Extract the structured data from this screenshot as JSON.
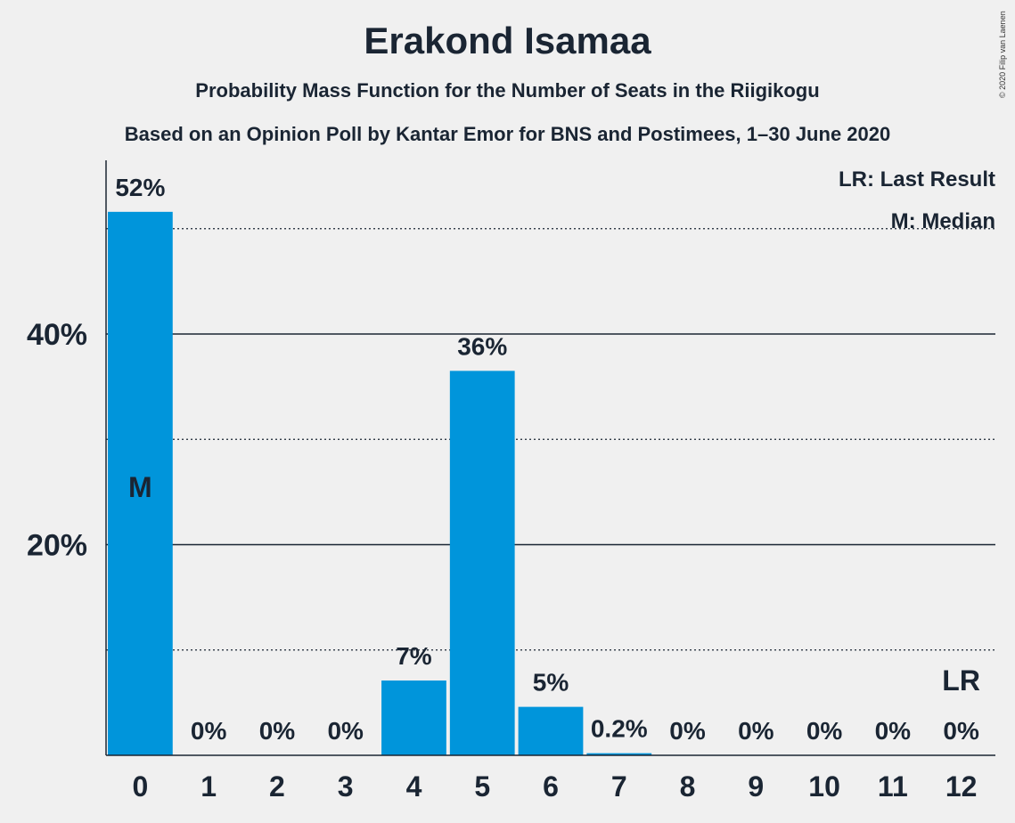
{
  "title": "Erakond Isamaa",
  "subtitle": "Probability Mass Function for the Number of Seats in the Riigikogu",
  "subtitle2": "Based on an Opinion Poll by Kantar Emor for BNS and Postimees, 1–30 June 2020",
  "copyright": "© 2020 Filip van Laenen",
  "legend": {
    "last_result": "LR: Last Result",
    "median": "M: Median"
  },
  "colors": {
    "bar": "#0095db",
    "background": "#f0f0f0",
    "text": "#1a2533"
  },
  "chart_data": {
    "type": "bar",
    "categories": [
      "0",
      "1",
      "2",
      "3",
      "4",
      "5",
      "6",
      "7",
      "8",
      "9",
      "10",
      "11",
      "12"
    ],
    "values": [
      51.6,
      0,
      0,
      0,
      7.1,
      36.5,
      4.6,
      0.2,
      0,
      0,
      0,
      0,
      0
    ],
    "data_labels": [
      "52%",
      "0%",
      "0%",
      "0%",
      "7%",
      "36%",
      "5%",
      "0.2%",
      "0%",
      "0%",
      "0%",
      "0%",
      "0%"
    ],
    "ylim": [
      0,
      55
    ],
    "y_ticks_major": [
      {
        "value": 20,
        "label": "20%"
      },
      {
        "value": 40,
        "label": "40%"
      }
    ],
    "y_gridlines_minor": [
      10,
      30,
      50
    ],
    "median_category": "0",
    "median_label": "M",
    "last_result_category": "12",
    "last_result_label": "LR",
    "grid": true,
    "legend_position": "top-right"
  }
}
